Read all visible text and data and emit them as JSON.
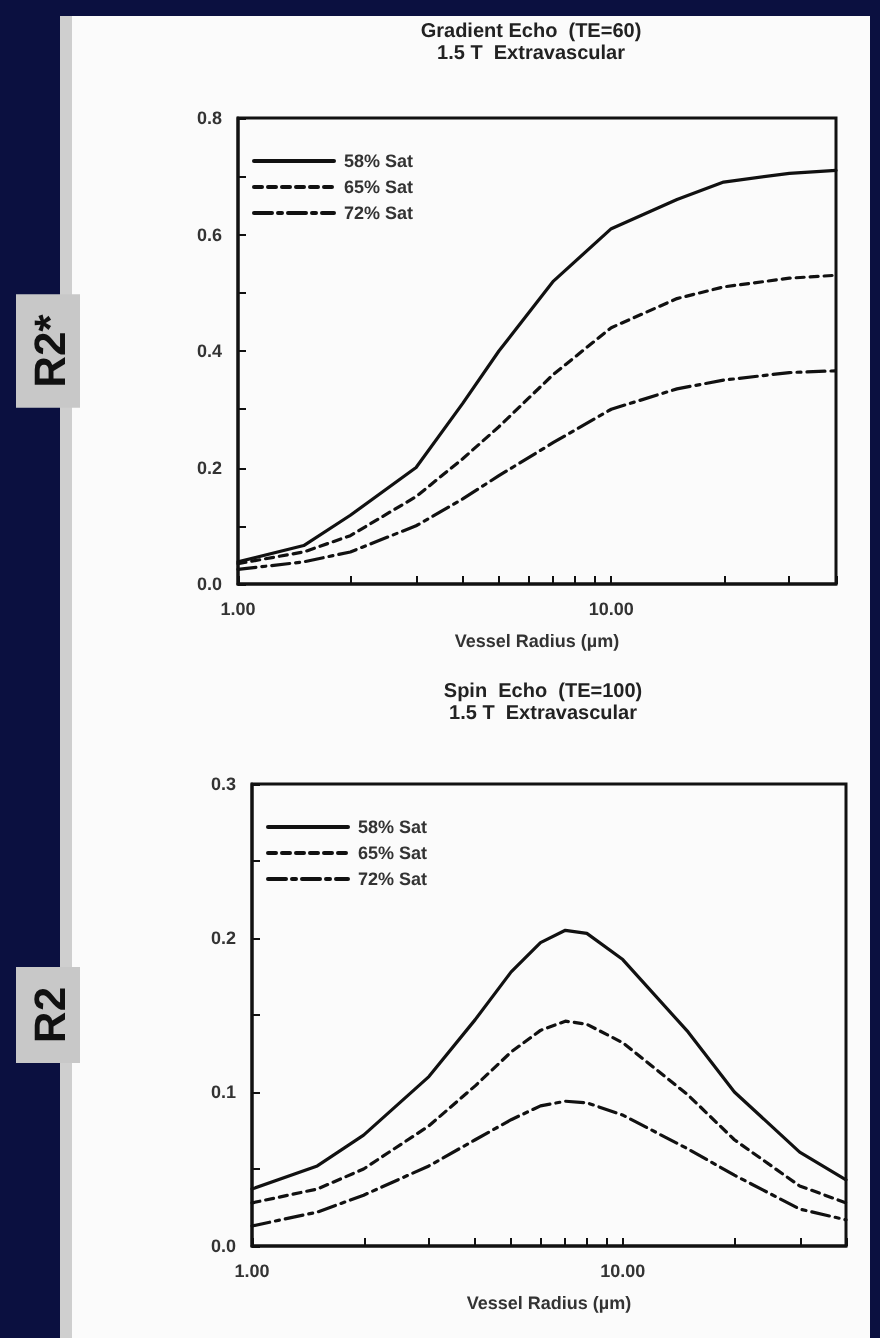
{
  "chart_data": [
    {
      "type": "line",
      "title": "Gradient Echo  (TE=60)",
      "subtitle": "1.5 T  Extravascular",
      "xlabel": "Vessel Radius (µm)",
      "ylabel": "R2*",
      "log": "x",
      "x": [
        1,
        1.5,
        2,
        3,
        4,
        5,
        7,
        10,
        15,
        20,
        30,
        40
      ],
      "series": [
        {
          "name": "58% Sat",
          "color": "#111111",
          "line_style": "solid",
          "values": [
            0.038,
            0.066,
            0.118,
            0.2,
            0.31,
            0.4,
            0.52,
            0.61,
            0.66,
            0.69,
            0.705,
            0.71
          ]
        },
        {
          "name": "65% Sat",
          "color": "#111111",
          "line_style": "dashed",
          "values": [
            0.035,
            0.055,
            0.083,
            0.15,
            0.215,
            0.27,
            0.36,
            0.44,
            0.49,
            0.51,
            0.525,
            0.53
          ]
        },
        {
          "name": "72% Sat",
          "color": "#111111",
          "line_style": "dashdot",
          "values": [
            0.025,
            0.038,
            0.055,
            0.1,
            0.146,
            0.186,
            0.243,
            0.3,
            0.335,
            0.35,
            0.363,
            0.366
          ]
        }
      ],
      "xlim": [
        1,
        40
      ],
      "xticks": [
        {
          "value": 1,
          "label": "1.00"
        },
        {
          "value": 2,
          "label": null
        },
        {
          "value": 3,
          "label": null
        },
        {
          "value": 4,
          "label": null
        },
        {
          "value": 5,
          "label": null
        },
        {
          "value": 6,
          "label": null
        },
        {
          "value": 7,
          "label": null
        },
        {
          "value": 8,
          "label": null
        },
        {
          "value": 9,
          "label": null
        },
        {
          "value": 10,
          "label": "10.00"
        },
        {
          "value": 20,
          "label": null
        },
        {
          "value": 30,
          "label": null
        },
        {
          "value": 40,
          "label": null
        }
      ],
      "ylim": [
        0,
        0.8
      ],
      "yticks": [
        {
          "value": 0,
          "label": "0.0"
        },
        {
          "value": 0.1,
          "label": null
        },
        0.2,
        {
          "value": 0.3,
          "label": null
        },
        0.4,
        {
          "value": 0.5,
          "label": null
        },
        0.6,
        {
          "value": 0.7,
          "label": null
        },
        0.8
      ],
      "legend": "top left",
      "grid": false,
      "marker": "none"
    },
    {
      "type": "line",
      "title": "Spin  Echo  (TE=100)",
      "subtitle": "1.5 T  Extravascular",
      "xlabel": "Vessel Radius (µm)",
      "ylabel": "R2",
      "log": "x",
      "x": [
        1,
        1.5,
        2,
        3,
        4,
        5,
        6,
        7,
        8,
        10,
        15,
        20,
        30,
        40
      ],
      "series": [
        {
          "name": "58% Sat",
          "color": "#111111",
          "line_style": "solid",
          "values": [
            0.037,
            0.052,
            0.072,
            0.11,
            0.147,
            0.178,
            0.197,
            0.205,
            0.203,
            0.186,
            0.139,
            0.1,
            0.061,
            0.043
          ]
        },
        {
          "name": "65% Sat",
          "color": "#111111",
          "line_style": "dashed",
          "values": [
            0.028,
            0.037,
            0.05,
            0.078,
            0.104,
            0.126,
            0.14,
            0.146,
            0.144,
            0.132,
            0.098,
            0.069,
            0.039,
            0.028
          ]
        },
        {
          "name": "72% Sat",
          "color": "#111111",
          "line_style": "dashdot",
          "values": [
            0.013,
            0.022,
            0.033,
            0.052,
            0.069,
            0.082,
            0.091,
            0.094,
            0.093,
            0.085,
            0.063,
            0.046,
            0.024,
            0.017
          ]
        }
      ],
      "xlim": [
        1,
        40
      ],
      "xticks": [
        {
          "value": 1,
          "label": "1.00"
        },
        {
          "value": 2,
          "label": null
        },
        {
          "value": 3,
          "label": null
        },
        {
          "value": 4,
          "label": null
        },
        {
          "value": 5,
          "label": null
        },
        {
          "value": 6,
          "label": null
        },
        {
          "value": 7,
          "label": null
        },
        {
          "value": 8,
          "label": null
        },
        {
          "value": 9,
          "label": null
        },
        {
          "value": 10,
          "label": "10.00"
        },
        {
          "value": 20,
          "label": null
        },
        {
          "value": 30,
          "label": null
        },
        {
          "value": 40,
          "label": null
        }
      ],
      "ylim": [
        0,
        0.3
      ],
      "yticks": [
        {
          "value": 0,
          "label": "0.0"
        },
        {
          "value": 0.05,
          "label": null
        },
        0.1,
        {
          "value": 0.15,
          "label": null
        },
        0.2,
        {
          "value": 0.25,
          "label": null
        },
        0.3
      ],
      "legend": "top left",
      "grid": false,
      "marker": "none"
    }
  ]
}
